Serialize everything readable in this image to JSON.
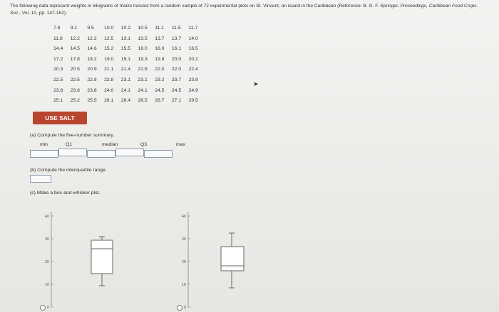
{
  "intro": {
    "text": "The following data represent weights in kilograms of maize harvest from a random sample of 72 experimental plots on St. Vincent, an island in the Caribbean (Reference: B. G. F. Springer,",
    "citation": "Proceedings, Caribbean Food Corps. Soc.",
    "end": ", Vol. 10, pp. 147-152)."
  },
  "table": {
    "rows": [
      [
        "7.8",
        "9.1",
        "9.5",
        "10.0",
        "10.2",
        "10.5",
        "11.1",
        "11.5",
        "11.7"
      ],
      [
        "11.8",
        "12.2",
        "12.2",
        "12.5",
        "13.1",
        "13.5",
        "13.7",
        "13.7",
        "14.0"
      ],
      [
        "14.4",
        "14.5",
        "14.6",
        "15.2",
        "15.5",
        "16.0",
        "16.0",
        "16.1",
        "16.5"
      ],
      [
        "17.2",
        "17.8",
        "18.2",
        "19.0",
        "19.1",
        "19.3",
        "19.8",
        "20.0",
        "20.2"
      ],
      [
        "20.3",
        "20.5",
        "20.9",
        "21.1",
        "21.4",
        "21.8",
        "22.0",
        "22.0",
        "22.4"
      ],
      [
        "22.5",
        "22.5",
        "22.8",
        "22.8",
        "23.1",
        "23.1",
        "23.2",
        "23.7",
        "23.8"
      ],
      [
        "23.8",
        "23.8",
        "23.8",
        "24.0",
        "24.1",
        "24.1",
        "24.5",
        "24.5",
        "24.9"
      ],
      [
        "25.1",
        "25.2",
        "25.5",
        "26.1",
        "26.4",
        "26.5",
        "26.7",
        "27.1",
        "29.5"
      ]
    ]
  },
  "button": "USE SALT",
  "part_a": {
    "prompt": "(a) Compute the five-number summary.",
    "labels": [
      "min",
      "Q1",
      "median",
      "Q3",
      "max"
    ]
  },
  "part_b": {
    "prompt": "(b) Compute the interquartile range."
  },
  "part_c": {
    "prompt": "(c) Make a box-and-whisker plot.",
    "plots": [
      {
        "ticks": [
          40,
          30,
          20,
          10,
          0
        ]
      },
      {
        "ticks": [
          40,
          30,
          20,
          10,
          0
        ]
      }
    ]
  }
}
